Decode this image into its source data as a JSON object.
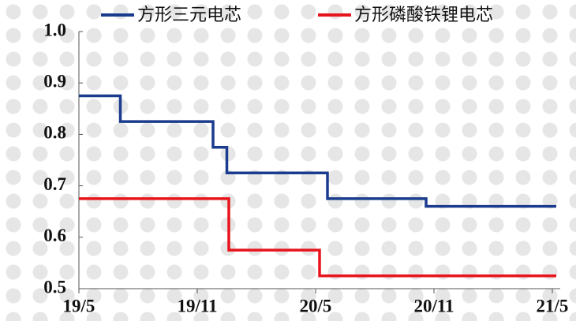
{
  "chart_data": {
    "type": "line",
    "step": "post",
    "x": [],
    "series": [
      {
        "name": "方形三元电芯",
        "color": "#1b3c8e",
        "x": [
          0,
          2.1,
          6.8,
          7.5,
          12.6,
          17.6,
          24.2
        ],
        "values": [
          0.875,
          0.825,
          0.775,
          0.725,
          0.675,
          0.66,
          0.66
        ]
      },
      {
        "name": "方形磷酸铁锂电芯",
        "color": "#e8141b",
        "x": [
          0,
          7.6,
          12.2,
          24.2
        ],
        "values": [
          0.675,
          0.575,
          0.525,
          0.525
        ]
      }
    ],
    "xlim": [
      0,
      24.4
    ],
    "xticks": [
      {
        "value": 0,
        "label": "19/5"
      },
      {
        "value": 6,
        "label": "19/11"
      },
      {
        "value": 12,
        "label": "20/5"
      },
      {
        "value": 18,
        "label": "20/11"
      },
      {
        "value": 24,
        "label": "21/5"
      }
    ],
    "ylim": [
      0.5,
      1.0
    ],
    "yticks": [
      0.5,
      0.6,
      0.7,
      0.8,
      0.9,
      {
        "value": 1.0,
        "label": "1.0"
      }
    ],
    "legend": "top"
  }
}
